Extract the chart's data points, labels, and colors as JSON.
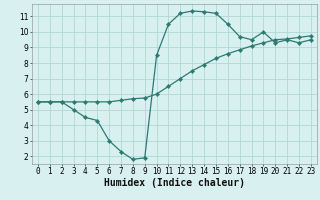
{
  "line1_x": [
    0,
    1,
    2,
    3,
    4,
    5,
    6,
    7,
    8,
    9,
    10,
    11,
    12,
    13,
    14,
    15,
    16,
    17,
    18,
    19,
    20,
    21,
    22,
    23
  ],
  "line1_y": [
    5.5,
    5.5,
    5.5,
    5.5,
    5.5,
    5.5,
    5.5,
    5.6,
    5.7,
    5.75,
    6.0,
    6.5,
    7.0,
    7.5,
    7.9,
    8.3,
    8.6,
    8.85,
    9.1,
    9.3,
    9.5,
    9.55,
    9.65,
    9.75
  ],
  "line2_x": [
    0,
    1,
    2,
    3,
    4,
    5,
    6,
    7,
    8,
    9,
    10,
    11,
    12,
    13,
    14,
    15,
    16,
    17,
    18,
    19,
    20,
    21,
    22,
    23
  ],
  "line2_y": [
    5.5,
    5.5,
    5.5,
    5.0,
    4.5,
    4.3,
    3.0,
    2.3,
    1.8,
    1.9,
    8.5,
    10.5,
    11.2,
    11.35,
    11.3,
    11.2,
    10.5,
    9.7,
    9.5,
    10.0,
    9.3,
    9.5,
    9.3,
    9.5
  ],
  "line_color": "#2d7a72",
  "bg_color": "#d8f0f0",
  "grid_color": "#b0d8d8",
  "xlabel": "Humidex (Indice chaleur)",
  "xlim": [
    -0.5,
    23.5
  ],
  "ylim": [
    1.5,
    11.8
  ],
  "xticks": [
    0,
    1,
    2,
    3,
    4,
    5,
    6,
    7,
    8,
    9,
    10,
    11,
    12,
    13,
    14,
    15,
    16,
    17,
    18,
    19,
    20,
    21,
    22,
    23
  ],
  "yticks": [
    2,
    3,
    4,
    5,
    6,
    7,
    8,
    9,
    10,
    11
  ],
  "marker": "D",
  "markersize": 2.2,
  "linewidth": 0.9,
  "tick_fontsize": 5.5,
  "xlabel_fontsize": 7.0
}
